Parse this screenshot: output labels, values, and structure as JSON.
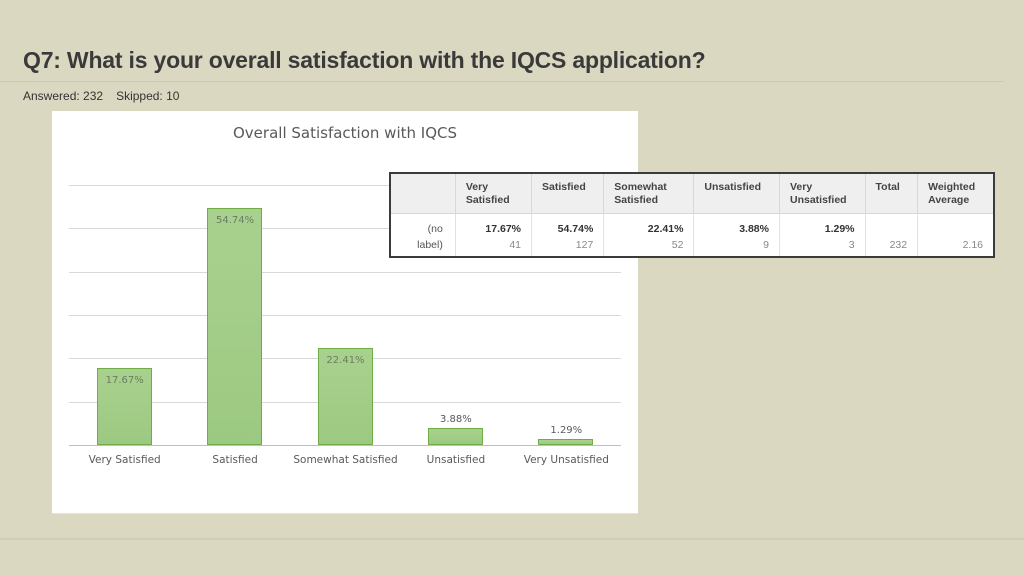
{
  "question": {
    "title": "Q7: What is your overall satisfaction with the IQCS application?",
    "answered_label": "Answered: 232",
    "skipped_label": "Skipped: 10"
  },
  "colors": {
    "background": "#dbd8c2",
    "bar_fill": "#a9d18e",
    "bar_border": "#70ad47",
    "title_text": "#3a3a3a"
  },
  "chart_data": {
    "type": "bar",
    "title": "Overall Satisfaction with IQCS",
    "categories": [
      "Very Satisfied",
      "Satisfied",
      "Somewhat Satisfied",
      "Unsatisfied",
      "Very Unsatisfied"
    ],
    "values": [
      17.67,
      54.74,
      22.41,
      3.88,
      1.29
    ],
    "value_labels": [
      "17.67%",
      "54.74%",
      "22.41%",
      "3.88%",
      "1.29%"
    ],
    "xlabel": "",
    "ylabel": "",
    "ylim": [
      0,
      60
    ],
    "grid": true,
    "y_axis_labels_visible": false,
    "legend": "none"
  },
  "table": {
    "headers": [
      "",
      "Very Satisfied",
      "Satisfied",
      "Somewhat Satisfied",
      "Unsatisfied",
      "Very Unsatisfied",
      "Total",
      "Weighted Average"
    ],
    "rows": [
      {
        "label": "(no label)",
        "cells": [
          {
            "pct": "17.67%",
            "count": "41"
          },
          {
            "pct": "54.74%",
            "count": "127"
          },
          {
            "pct": "22.41%",
            "count": "52"
          },
          {
            "pct": "3.88%",
            "count": "9"
          },
          {
            "pct": "1.29%",
            "count": "3"
          }
        ],
        "total": "232",
        "weighted_average": "2.16"
      }
    ]
  }
}
